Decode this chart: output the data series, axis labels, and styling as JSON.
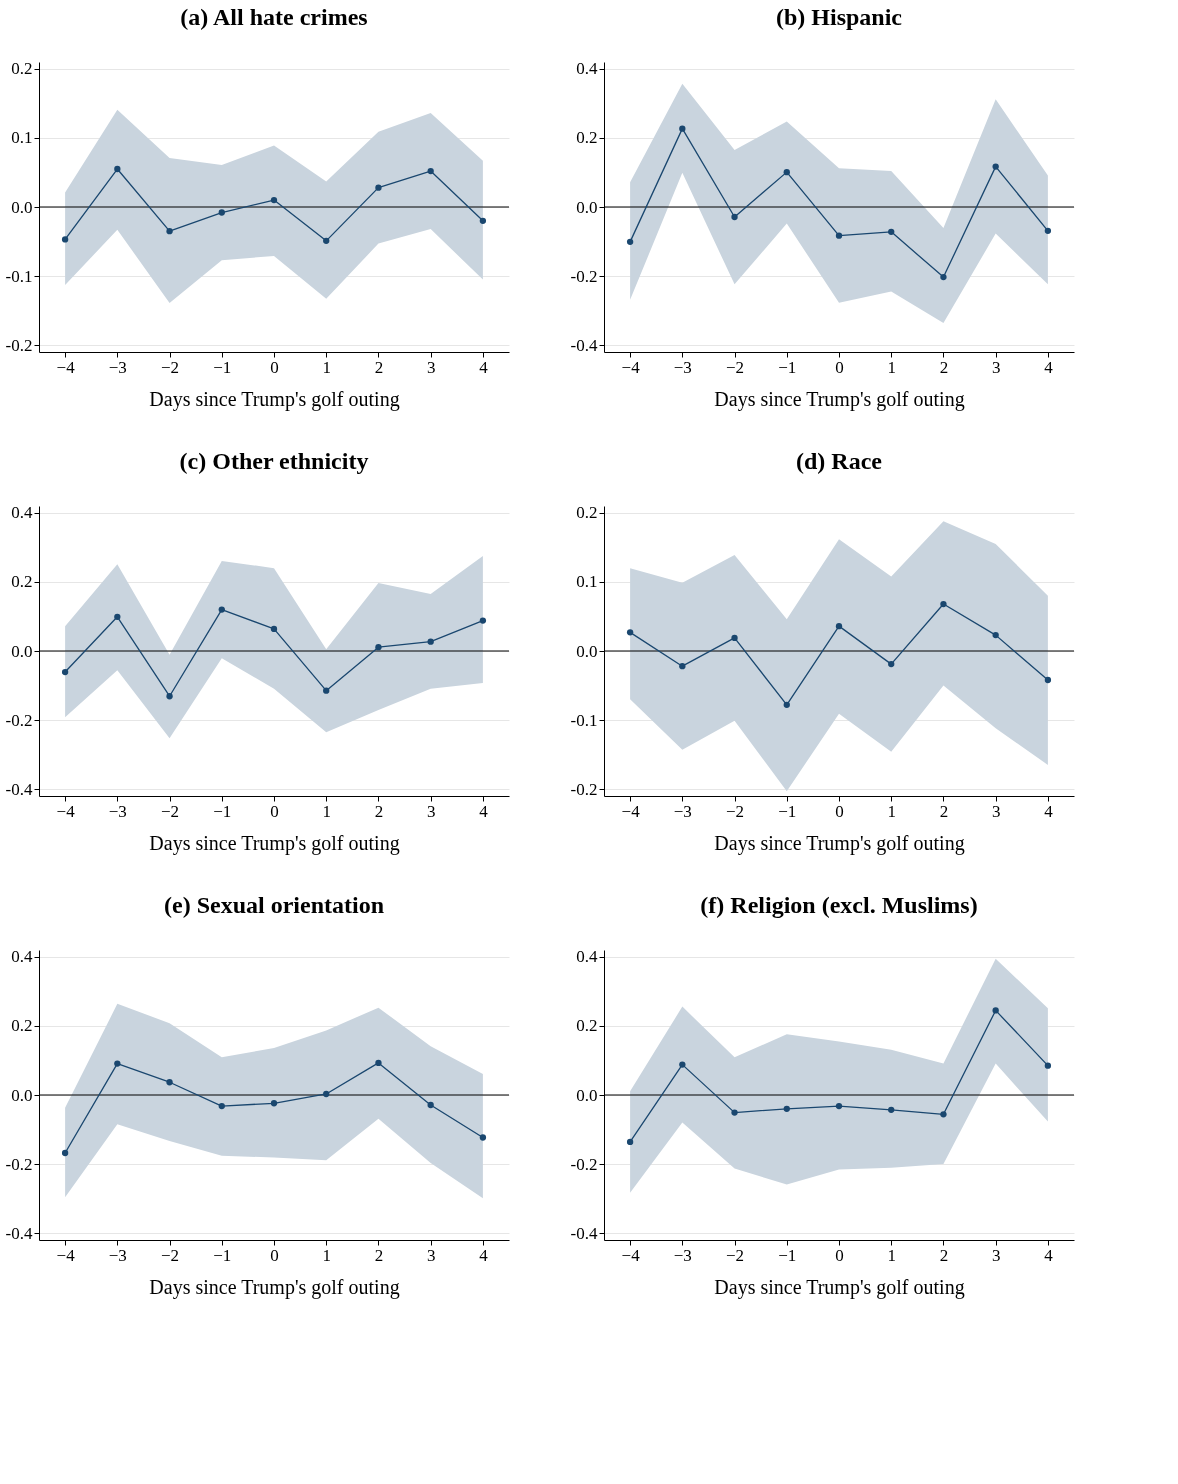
{
  "chart_data": [
    {
      "type": "line",
      "title": "(a) All hate crimes",
      "xlabel": "Days since Trump's golf outing",
      "x": [
        -4,
        -3,
        -2,
        -1,
        0,
        1,
        2,
        3,
        4
      ],
      "xlim": [
        -4.5,
        4.5
      ],
      "xticks": [
        -4,
        -3,
        -2,
        -1,
        0,
        1,
        2,
        3,
        4
      ],
      "ylim": [
        -0.21,
        0.21
      ],
      "yticks": [
        {
          "value": -0.2,
          "label": "-0.2"
        },
        {
          "value": -0.1,
          "label": "-0.1"
        },
        {
          "value": 0,
          "label": "0.0"
        },
        {
          "value": 0.1,
          "label": "0.1"
        },
        {
          "value": 0.2,
          "label": "0.2"
        }
      ],
      "grid": "y",
      "marker": "circle",
      "line_style": "solid",
      "ref_lines": [
        {
          "axis": "y",
          "value": 0,
          "color": "#000000"
        }
      ],
      "series": [
        {
          "color": "#1a476f",
          "values": [
            -0.047,
            0.055,
            -0.035,
            -0.008,
            0.01,
            -0.049,
            0.028,
            0.052,
            -0.02
          ],
          "lower": [
            -0.113,
            -0.033,
            -0.139,
            -0.077,
            -0.071,
            -0.133,
            -0.053,
            -0.032,
            -0.105
          ],
          "upper": [
            0.021,
            0.141,
            0.071,
            0.061,
            0.089,
            0.037,
            0.109,
            0.136,
            0.067
          ]
        }
      ]
    },
    {
      "type": "line",
      "title": "(b) Hispanic",
      "xlabel": "Days since Trump's golf outing",
      "x": [
        -4,
        -3,
        -2,
        -1,
        0,
        1,
        2,
        3,
        4
      ],
      "xlim": [
        -4.5,
        4.5
      ],
      "xticks": [
        -4,
        -3,
        -2,
        -1,
        0,
        1,
        2,
        3,
        4
      ],
      "ylim": [
        -0.42,
        0.42
      ],
      "yticks": [
        {
          "value": -0.4,
          "label": "-0.4"
        },
        {
          "value": -0.2,
          "label": "-0.2"
        },
        {
          "value": 0,
          "label": "0.0"
        },
        {
          "value": 0.2,
          "label": "0.2"
        },
        {
          "value": 0.4,
          "label": "0.4"
        }
      ],
      "grid": "y",
      "marker": "circle",
      "line_style": "solid",
      "ref_lines": [
        {
          "axis": "y",
          "value": 0,
          "color": "#000000"
        }
      ],
      "series": [
        {
          "color": "#1a476f",
          "values": [
            -0.101,
            0.227,
            -0.029,
            0.101,
            -0.083,
            -0.072,
            -0.203,
            0.117,
            -0.069
          ],
          "lower": [
            -0.269,
            0.099,
            -0.224,
            -0.048,
            -0.277,
            -0.245,
            -0.336,
            -0.077,
            -0.224
          ],
          "upper": [
            0.072,
            0.357,
            0.165,
            0.248,
            0.112,
            0.104,
            -0.061,
            0.312,
            0.091
          ]
        }
      ]
    },
    {
      "type": "line",
      "title": "(c) Other ethnicity",
      "xlabel": "Days since Trump's golf outing",
      "x": [
        -4,
        -3,
        -2,
        -1,
        0,
        1,
        2,
        3,
        4
      ],
      "xlim": [
        -4.5,
        4.5
      ],
      "xticks": [
        -4,
        -3,
        -2,
        -1,
        0,
        1,
        2,
        3,
        4
      ],
      "ylim": [
        -0.42,
        0.42
      ],
      "yticks": [
        {
          "value": -0.4,
          "label": "-0.4"
        },
        {
          "value": -0.2,
          "label": "-0.2"
        },
        {
          "value": 0,
          "label": "0.0"
        },
        {
          "value": 0.2,
          "label": "0.2"
        },
        {
          "value": 0.4,
          "label": "0.4"
        }
      ],
      "grid": "y",
      "marker": "circle",
      "line_style": "solid",
      "ref_lines": [
        {
          "axis": "y",
          "value": 0,
          "color": "#000000"
        }
      ],
      "series": [
        {
          "color": "#1a476f",
          "values": [
            -0.061,
            0.099,
            -0.131,
            0.12,
            0.064,
            -0.115,
            0.011,
            0.027,
            0.088
          ],
          "lower": [
            -0.192,
            -0.056,
            -0.253,
            -0.021,
            -0.109,
            -0.235,
            -0.171,
            -0.109,
            -0.093
          ],
          "upper": [
            0.072,
            0.251,
            -0.011,
            0.261,
            0.24,
            0.005,
            0.197,
            0.165,
            0.275
          ]
        }
      ]
    },
    {
      "type": "line",
      "title": "(d) Race",
      "xlabel": "Days since Trump's golf outing",
      "x": [
        -4,
        -3,
        -2,
        -1,
        0,
        1,
        2,
        3,
        4
      ],
      "xlim": [
        -4.5,
        4.5
      ],
      "xticks": [
        -4,
        -3,
        -2,
        -1,
        0,
        1,
        2,
        3,
        4
      ],
      "ylim": [
        -0.21,
        0.21
      ],
      "yticks": [
        {
          "value": -0.2,
          "label": "-0.2"
        },
        {
          "value": -0.1,
          "label": "-0.1"
        },
        {
          "value": 0,
          "label": "0.0"
        },
        {
          "value": 0.1,
          "label": "0.1"
        },
        {
          "value": 0.2,
          "label": "0.2"
        }
      ],
      "grid": "y",
      "marker": "circle",
      "line_style": "solid",
      "ref_lines": [
        {
          "axis": "y",
          "value": 0,
          "color": "#000000"
        }
      ],
      "series": [
        {
          "color": "#1a476f",
          "values": [
            0.027,
            -0.022,
            0.019,
            -0.078,
            0.036,
            -0.019,
            0.068,
            0.023,
            -0.042
          ],
          "lower": [
            -0.07,
            -0.143,
            -0.101,
            -0.203,
            -0.091,
            -0.146,
            -0.05,
            -0.112,
            -0.165
          ],
          "upper": [
            0.12,
            0.099,
            0.139,
            0.046,
            0.162,
            0.108,
            0.188,
            0.155,
            0.08
          ]
        }
      ]
    },
    {
      "type": "line",
      "title": "(e) Sexual orientation",
      "xlabel": "Days since Trump's golf outing",
      "x": [
        -4,
        -3,
        -2,
        -1,
        0,
        1,
        2,
        3,
        4
      ],
      "xlim": [
        -4.5,
        4.5
      ],
      "xticks": [
        -4,
        -3,
        -2,
        -1,
        0,
        1,
        2,
        3,
        4
      ],
      "ylim": [
        -0.42,
        0.42
      ],
      "yticks": [
        {
          "value": -0.4,
          "label": "-0.4"
        },
        {
          "value": -0.2,
          "label": "-0.2"
        },
        {
          "value": 0,
          "label": "0.0"
        },
        {
          "value": 0.2,
          "label": "0.2"
        },
        {
          "value": 0.4,
          "label": "0.4"
        }
      ],
      "grid": "y",
      "marker": "circle",
      "line_style": "solid",
      "ref_lines": [
        {
          "axis": "y",
          "value": 0,
          "color": "#000000"
        }
      ],
      "series": [
        {
          "color": "#1a476f",
          "values": [
            -0.168,
            0.091,
            0.037,
            -0.032,
            -0.024,
            0.003,
            0.093,
            -0.029,
            -0.123
          ],
          "lower": [
            -0.296,
            -0.085,
            -0.133,
            -0.176,
            -0.181,
            -0.189,
            -0.069,
            -0.197,
            -0.299
          ],
          "upper": [
            -0.037,
            0.264,
            0.208,
            0.109,
            0.136,
            0.187,
            0.253,
            0.141,
            0.061
          ]
        }
      ]
    },
    {
      "type": "line",
      "title": "(f) Religion (excl. Muslims)",
      "xlabel": "Days since Trump's golf outing",
      "x": [
        -4,
        -3,
        -2,
        -1,
        0,
        1,
        2,
        3,
        4
      ],
      "xlim": [
        -4.5,
        4.5
      ],
      "xticks": [
        -4,
        -3,
        -2,
        -1,
        0,
        1,
        2,
        3,
        4
      ],
      "ylim": [
        -0.42,
        0.42
      ],
      "yticks": [
        {
          "value": -0.4,
          "label": "-0.4"
        },
        {
          "value": -0.2,
          "label": "-0.2"
        },
        {
          "value": 0,
          "label": "0.0"
        },
        {
          "value": 0.2,
          "label": "0.2"
        },
        {
          "value": 0.4,
          "label": "0.4"
        }
      ],
      "grid": "y",
      "marker": "circle",
      "line_style": "solid",
      "ref_lines": [
        {
          "axis": "y",
          "value": 0,
          "color": "#000000"
        }
      ],
      "series": [
        {
          "color": "#1a476f",
          "values": [
            -0.136,
            0.088,
            -0.051,
            -0.04,
            -0.032,
            -0.043,
            -0.056,
            0.245,
            0.085
          ],
          "lower": [
            -0.283,
            -0.08,
            -0.213,
            -0.259,
            -0.216,
            -0.211,
            -0.2,
            0.091,
            -0.077
          ],
          "upper": [
            0.011,
            0.256,
            0.109,
            0.176,
            0.155,
            0.131,
            0.091,
            0.395,
            0.251
          ]
        }
      ]
    }
  ]
}
